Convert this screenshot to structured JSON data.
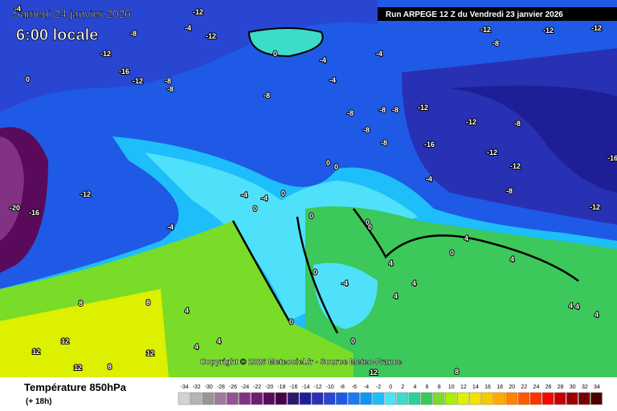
{
  "header": {
    "date": "Samedi 24 janvier 2026",
    "time": "6:00 locale",
    "run": "Run ARPEGE 12 Z du Vendredi 23 janvier 2026"
  },
  "map": {
    "labels": [
      "-4",
      "-12",
      "-12",
      "-4",
      "-8",
      "-12",
      "-16",
      "-12",
      "-8",
      "-8",
      "0",
      "0",
      "-4",
      "-4",
      "-4",
      "-8",
      "-8",
      "-8",
      "-8",
      "-8",
      "-12",
      "-12",
      "-16",
      "-12",
      "-8",
      "-12",
      "-8",
      "-12",
      "-12",
      "-4",
      "-12",
      "-20",
      "-16",
      "-4",
      "-4",
      "-4",
      "0",
      "0",
      "0",
      "0",
      "0",
      "0",
      "0",
      "-4",
      "4",
      "4",
      "4",
      "4",
      "4",
      "0",
      "8",
      "8",
      "4",
      "4",
      "4",
      "12",
      "12",
      "8",
      "12",
      "12",
      "12",
      "8",
      "0",
      "0",
      "0",
      "4",
      "4",
      "4",
      "-16",
      "-12",
      "-12",
      "-8",
      "-8"
    ],
    "copyright": "Copyright © 2026 Meteociel.fr - Source Meteo-France"
  },
  "legend": {
    "title": "Température 850hPa",
    "lead": "(+ 18h)",
    "scale": [
      {
        "value": -34,
        "color": "#d2d2d2"
      },
      {
        "value": -32,
        "color": "#b4b4b4"
      },
      {
        "value": -30,
        "color": "#969696"
      },
      {
        "value": -28,
        "color": "#a07aa0"
      },
      {
        "value": -26,
        "color": "#965096"
      },
      {
        "value": -24,
        "color": "#823282"
      },
      {
        "value": -22,
        "color": "#6e1e6e"
      },
      {
        "value": -20,
        "color": "#5a0a5a"
      },
      {
        "value": -18,
        "color": "#46004e"
      },
      {
        "value": -16,
        "color": "#2a1a6e"
      },
      {
        "value": -14,
        "color": "#1e1e96"
      },
      {
        "value": -12,
        "color": "#2830b4"
      },
      {
        "value": -10,
        "color": "#2846d2"
      },
      {
        "value": -8,
        "color": "#1e5ae6"
      },
      {
        "value": -6,
        "color": "#1e78f0"
      },
      {
        "value": -4,
        "color": "#0a96f5"
      },
      {
        "value": -2,
        "color": "#1ebefa"
      },
      {
        "value": 0,
        "color": "#50e1fa"
      },
      {
        "value": 2,
        "color": "#3cdcc8"
      },
      {
        "value": 4,
        "color": "#28d296"
      },
      {
        "value": 6,
        "color": "#3cc85a"
      },
      {
        "value": 8,
        "color": "#78dc28"
      },
      {
        "value": 10,
        "color": "#aaf000"
      },
      {
        "value": 12,
        "color": "#dcf000"
      },
      {
        "value": 14,
        "color": "#f5e100"
      },
      {
        "value": 16,
        "color": "#fac800"
      },
      {
        "value": 18,
        "color": "#ffaa00"
      },
      {
        "value": 20,
        "color": "#ff8200"
      },
      {
        "value": 22,
        "color": "#ff5a00"
      },
      {
        "value": 24,
        "color": "#ff3200"
      },
      {
        "value": 26,
        "color": "#f00a00"
      },
      {
        "value": 28,
        "color": "#c80000"
      },
      {
        "value": 30,
        "color": "#a00000"
      },
      {
        "value": 32,
        "color": "#780000"
      },
      {
        "value": 34,
        "color": "#4b0000"
      }
    ]
  }
}
